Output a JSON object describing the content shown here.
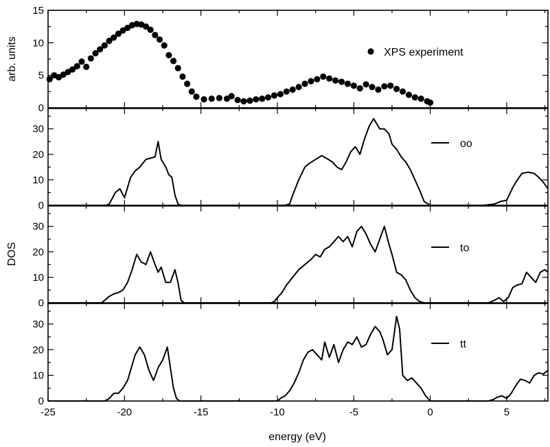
{
  "chart_data": {
    "type": "line",
    "xlabel": "energy (eV)",
    "x_ticks": [
      "-25",
      "-20",
      "-15",
      "-10",
      "-5",
      "0",
      "5"
    ],
    "xlim": [
      -25,
      7.7
    ],
    "panels": [
      {
        "id": "xps",
        "type": "scatter",
        "ylabel": "arb. units",
        "ylim": [
          0,
          15
        ],
        "y_ticks": [
          "0",
          "5",
          "10",
          "15"
        ],
        "legend": {
          "label": "XPS experiment",
          "marker": "dot"
        },
        "series": [
          {
            "name": "XPS experiment",
            "x": [
              -24.9,
              -24.6,
              -24.3,
              -24.0,
              -23.7,
              -23.4,
              -23.1,
              -22.8,
              -22.5,
              -22.2,
              -21.9,
              -21.6,
              -21.3,
              -21.0,
              -20.7,
              -20.4,
              -20.1,
              -19.8,
              -19.5,
              -19.2,
              -18.9,
              -18.6,
              -18.3,
              -18.0,
              -17.7,
              -17.4,
              -17.1,
              -16.8,
              -16.5,
              -16.2,
              -15.9,
              -15.6,
              -15.3,
              -14.8,
              -14.3,
              -13.8,
              -13.3,
              -13.0,
              -12.6,
              -12.2,
              -11.8,
              -11.4,
              -11.0,
              -10.6,
              -10.2,
              -9.8,
              -9.4,
              -9.0,
              -8.6,
              -8.2,
              -7.8,
              -7.4,
              -7.0,
              -6.6,
              -6.2,
              -5.8,
              -5.4,
              -5.0,
              -4.6,
              -4.2,
              -3.8,
              -3.4,
              -3.0,
              -2.6,
              -2.2,
              -1.8,
              -1.4,
              -1.0,
              -0.6,
              -0.2,
              0.0
            ],
            "y": [
              4.4,
              5.0,
              4.7,
              5.1,
              5.5,
              5.9,
              6.4,
              7.1,
              6.3,
              7.6,
              8.4,
              9.0,
              9.6,
              10.3,
              10.8,
              11.4,
              11.9,
              12.3,
              12.7,
              12.9,
              12.8,
              12.5,
              12.0,
              11.2,
              10.5,
              9.6,
              8.1,
              7.2,
              6.1,
              4.8,
              3.7,
              2.5,
              1.7,
              1.3,
              1.4,
              1.5,
              1.4,
              1.8,
              1.2,
              1.0,
              1.1,
              1.3,
              1.4,
              1.6,
              1.9,
              2.1,
              2.5,
              2.8,
              3.2,
              3.7,
              4.1,
              4.4,
              4.8,
              4.5,
              4.2,
              4.0,
              3.7,
              3.4,
              3.0,
              3.6,
              3.2,
              2.8,
              3.3,
              3.4,
              2.9,
              2.5,
              2.0,
              1.6,
              1.4,
              1.0,
              0.8
            ]
          }
        ]
      },
      {
        "id": "oo",
        "type": "line",
        "ylim": [
          0,
          38
        ],
        "y_ticks": [
          "0",
          "10",
          "20",
          "30"
        ],
        "legend": {
          "label": "oo",
          "marker": "line"
        },
        "series": [
          {
            "name": "oo",
            "x": [
              -25,
              -21.2,
              -21.0,
              -20.6,
              -20.3,
              -20.0,
              -19.8,
              -19.6,
              -19.3,
              -19.0,
              -18.6,
              -18.3,
              -18.0,
              -17.8,
              -17.6,
              -17.3,
              -17.1,
              -16.9,
              -16.7,
              -16.5,
              -16.3,
              -16.1,
              -9.5,
              -9.2,
              -9.0,
              -8.6,
              -8.2,
              -7.9,
              -7.5,
              -7.1,
              -6.8,
              -6.4,
              -6.1,
              -5.8,
              -5.5,
              -5.2,
              -4.9,
              -4.6,
              -4.3,
              -4.0,
              -3.7,
              -3.5,
              -3.3,
              -3.0,
              -2.7,
              -2.5,
              -2.2,
              -1.9,
              -1.6,
              -1.3,
              -1.0,
              -0.7,
              -0.4,
              0.0,
              3.5,
              4.2,
              4.6,
              5.0,
              5.4,
              5.7,
              6.0,
              6.4,
              6.8,
              7.1,
              7.4,
              7.7
            ],
            "y": [
              0,
              0,
              0.5,
              5,
              6.5,
              3,
              7,
              11,
              13.5,
              15,
              18,
              18.5,
              19,
              25,
              18,
              15,
              12,
              11,
              4,
              0.5,
              0,
              0,
              0,
              0.5,
              4,
              10,
              15,
              16.5,
              18,
              19.5,
              18.5,
              17,
              15,
              14,
              17,
              21,
              23,
              20,
              26,
              31,
              34,
              32,
              30,
              30,
              28,
              24,
              22,
              19,
              17,
              14,
              10,
              6,
              1.5,
              0,
              0,
              0.5,
              1.5,
              2,
              7,
              10,
              12.5,
              13,
              12.5,
              11,
              9,
              6.5
            ]
          }
        ]
      },
      {
        "id": "to",
        "type": "line",
        "ylim": [
          0,
          38
        ],
        "y_ticks": [
          "0",
          "10",
          "20",
          "30"
        ],
        "legend": {
          "label": "to",
          "marker": "line"
        },
        "series": [
          {
            "name": "to",
            "x": [
              -25,
              -21.5,
              -21.3,
              -21.0,
              -20.7,
              -20.4,
              -20.1,
              -19.8,
              -19.5,
              -19.2,
              -18.9,
              -18.6,
              -18.3,
              -18.0,
              -17.8,
              -17.6,
              -17.3,
              -17.0,
              -16.7,
              -16.5,
              -16.3,
              -16.1,
              -10.4,
              -10.2,
              -10.0,
              -9.7,
              -9.4,
              -9.0,
              -8.6,
              -8.2,
              -7.8,
              -7.5,
              -7.2,
              -6.9,
              -6.6,
              -6.3,
              -6.0,
              -5.7,
              -5.4,
              -5.1,
              -4.8,
              -4.5,
              -4.2,
              -3.9,
              -3.6,
              -3.3,
              -3.0,
              -2.7,
              -2.5,
              -2.2,
              -1.9,
              -1.6,
              -1.3,
              -1.0,
              -0.7,
              -0.4,
              0.0,
              3.8,
              4.2,
              4.5,
              4.8,
              5.1,
              5.4,
              5.7,
              6.0,
              6.3,
              6.6,
              6.9,
              7.2,
              7.5,
              7.7
            ],
            "y": [
              0,
              0,
              1,
              2.5,
              3.5,
              4,
              5,
              8,
              13,
              19,
              16,
              15,
              20,
              15,
              12,
              14,
              8,
              8,
              13,
              8,
              1,
              0,
              0,
              0.5,
              2,
              4,
              7,
              10,
              13,
              15,
              17,
              19,
              18,
              21,
              22,
              24,
              26,
              24,
              26,
              22,
              28,
              30,
              27,
              23,
              20,
              25,
              30,
              23,
              19,
              12,
              11,
              9,
              5,
              2,
              0.5,
              0,
              0,
              0,
              1,
              2,
              0.5,
              2,
              6,
              7,
              7.5,
              12,
              10,
              8,
              12,
              13,
              12
            ]
          }
        ]
      },
      {
        "id": "tt",
        "type": "line",
        "ylim": [
          0,
          38
        ],
        "y_ticks": [
          "0",
          "10",
          "20",
          "30"
        ],
        "legend": {
          "label": "tt",
          "marker": "line"
        },
        "series": [
          {
            "name": "tt",
            "x": [
              -25,
              -21.3,
              -21.0,
              -20.7,
              -20.4,
              -20.1,
              -19.8,
              -19.6,
              -19.3,
              -19.0,
              -18.7,
              -18.4,
              -18.1,
              -17.8,
              -17.5,
              -17.2,
              -17.0,
              -16.8,
              -16.6,
              -16.4,
              -16.2,
              -10.0,
              -9.8,
              -9.5,
              -9.2,
              -8.9,
              -8.6,
              -8.3,
              -8.0,
              -7.7,
              -7.4,
              -7.1,
              -6.9,
              -6.6,
              -6.3,
              -6.0,
              -5.7,
              -5.4,
              -5.1,
              -4.8,
              -4.5,
              -4.2,
              -3.9,
              -3.6,
              -3.3,
              -3.1,
              -2.8,
              -2.5,
              -2.2,
              -2.0,
              -1.8,
              -1.5,
              -1.2,
              -0.9,
              -0.6,
              -0.3,
              0.0,
              3.8,
              4.1,
              4.4,
              4.7,
              5.0,
              5.3,
              5.6,
              5.9,
              6.2,
              6.5,
              6.8,
              7.1,
              7.4,
              7.7
            ],
            "y": [
              0,
              0,
              1,
              3,
              3,
              5,
              8,
              12,
              18,
              21,
              18,
              12,
              8,
              13,
              16,
              21,
              13,
              5,
              1,
              0,
              0,
              0,
              1,
              2,
              4,
              7,
              11,
              16,
              19,
              20,
              18,
              16,
              23,
              17,
              22,
              15,
              20,
              23,
              22,
              25,
              21,
              22,
              26,
              29,
              27,
              24,
              18,
              20,
              33,
              28,
              10,
              8,
              9,
              7,
              5,
              2,
              0,
              0,
              0.5,
              1.5,
              2,
              1,
              3,
              6,
              8.5,
              8,
              7,
              10,
              11,
              10.5,
              12
            ]
          }
        ]
      }
    ],
    "shared_ylabel": "DOS"
  }
}
